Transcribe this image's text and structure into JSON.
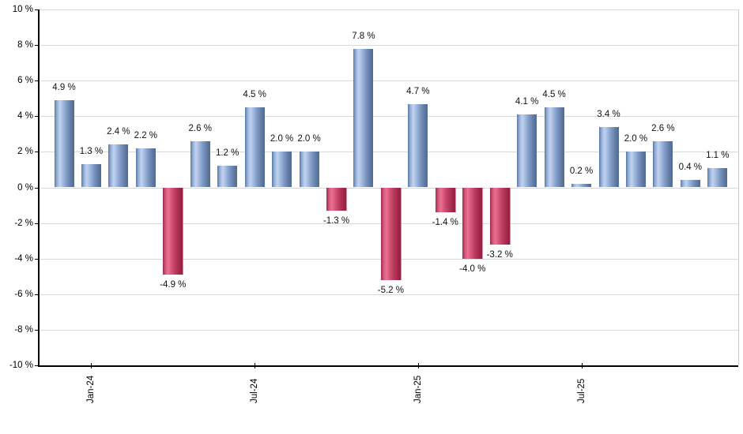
{
  "chart_data": {
    "type": "bar",
    "title": "",
    "xlabel": "",
    "ylabel": "",
    "ylim": [
      -10,
      10
    ],
    "y_tick_interval": 2,
    "grid": "horizontal",
    "legend": "none",
    "y_ticks": [
      {
        "value": 10,
        "label": "10 %"
      },
      {
        "value": 8,
        "label": "8 %"
      },
      {
        "value": 6,
        "label": "6 %"
      },
      {
        "value": 4,
        "label": "4 %"
      },
      {
        "value": 2,
        "label": "2 %"
      },
      {
        "value": 0,
        "label": "0 %"
      },
      {
        "value": -2,
        "label": "-2 %"
      },
      {
        "value": -4,
        "label": "-4 %"
      },
      {
        "value": -6,
        "label": "-6 %"
      },
      {
        "value": -8,
        "label": "-8 %"
      },
      {
        "value": -10,
        "label": "-10 %"
      }
    ],
    "bars": [
      {
        "value": 4.9,
        "label": "4.9 %"
      },
      {
        "value": 1.3,
        "label": "1.3 %"
      },
      {
        "value": 2.4,
        "label": "2.4 %"
      },
      {
        "value": 2.2,
        "label": "2.2 %"
      },
      {
        "value": -4.9,
        "label": "-4.9 %"
      },
      {
        "value": 2.6,
        "label": "2.6 %"
      },
      {
        "value": 1.2,
        "label": "1.2 %"
      },
      {
        "value": 4.5,
        "label": "4.5 %"
      },
      {
        "value": 2.0,
        "label": "2.0 %"
      },
      {
        "value": 2.0,
        "label": "2.0 %"
      },
      {
        "value": -1.3,
        "label": "-1.3 %"
      },
      {
        "value": 7.8,
        "label": "7.8 %"
      },
      {
        "value": -5.2,
        "label": "-5.2 %"
      },
      {
        "value": 4.7,
        "label": "4.7 %"
      },
      {
        "value": -1.4,
        "label": "-1.4 %"
      },
      {
        "value": -4.0,
        "label": "-4.0 %"
      },
      {
        "value": -3.2,
        "label": "-3.2 %"
      },
      {
        "value": 4.1,
        "label": "4.1 %"
      },
      {
        "value": 4.5,
        "label": "4.5 %"
      },
      {
        "value": 0.2,
        "label": "0.2 %"
      },
      {
        "value": 3.4,
        "label": "3.4 %"
      },
      {
        "value": 2.0,
        "label": "2.0 %"
      },
      {
        "value": 2.6,
        "label": "2.6 %"
      },
      {
        "value": 0.4,
        "label": "0.4 %"
      },
      {
        "value": 1.1,
        "label": "1.1 %"
      }
    ],
    "x_ticks": [
      {
        "bar_index": 1,
        "label": "Jan-24"
      },
      {
        "bar_index": 7,
        "label": "Jul-24"
      },
      {
        "bar_index": 13,
        "label": "Jan-25"
      },
      {
        "bar_index": 19,
        "label": "Jul-25"
      }
    ],
    "colors": {
      "positive_bar_gradient": [
        "#5a76a6 0%",
        "#93aed8 12%",
        "#c2d3ee 27%",
        "#a3bbe0 42%",
        "#7e98c6 62%",
        "#60799f 85%",
        "#506b94 100%"
      ],
      "negative_bar_gradient": [
        "#a3294e 0%",
        "#d75c7d 15%",
        "#ea7191 27%",
        "#d45276 45%",
        "#b93a5c 65%",
        "#a02548 88%",
        "#97203f 100%"
      ],
      "grid": "#d9d9d9",
      "plot_border": "#cccccc",
      "axis": "#000000",
      "label_text": "#101018"
    }
  }
}
